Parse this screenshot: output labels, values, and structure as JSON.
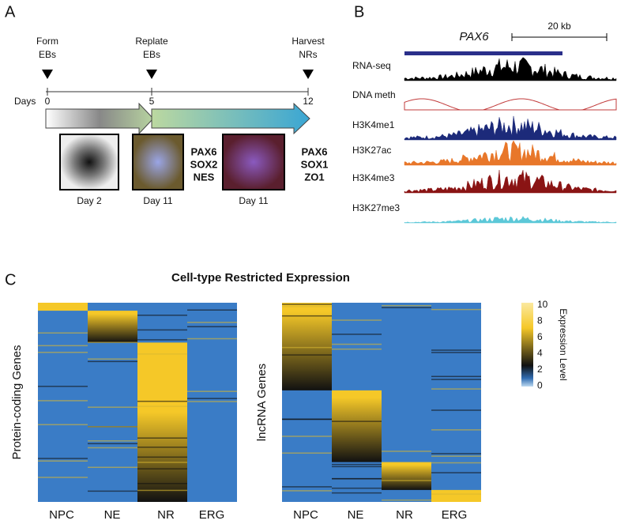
{
  "panel_a": {
    "label": "A",
    "events": [
      [
        "Form",
        "EBs"
      ],
      [
        "Replate",
        "EBs"
      ],
      [
        "Harvest",
        "NRs"
      ]
    ],
    "days_label": "Days",
    "day_ticks": [
      "0",
      "5",
      "12"
    ],
    "captions": [
      "Day 2",
      "Day 11",
      "Day 11"
    ],
    "markers_left": [
      "PAX6",
      "SOX2",
      "NES"
    ],
    "markers_right": [
      "PAX6",
      "SOX1",
      "ZO1"
    ]
  },
  "panel_b": {
    "label": "B",
    "gene": "PAX6",
    "scale": "20 kb",
    "tracks": [
      "RNA-seq",
      "DNA meth",
      "H3K4me1",
      "H3K27ac",
      "H3K4me3",
      "H3K27me3"
    ]
  },
  "panel_c": {
    "label": "C",
    "title": "Cell-type Restricted Expression",
    "left_ylabel": "Protein-coding Genes",
    "right_ylabel": "lncRNA Genes",
    "columns": [
      "NPC",
      "NE",
      "NR",
      "ERG"
    ],
    "colorbar_label": "Expression Level",
    "colorbar_ticks": [
      "10",
      "8",
      "6",
      "4",
      "2",
      "0"
    ]
  }
}
